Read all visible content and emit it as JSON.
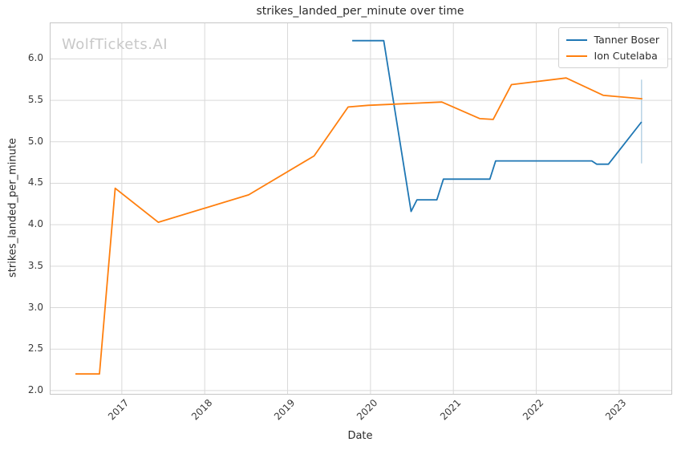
{
  "watermark": {
    "text": "WolfTickets.AI"
  },
  "colors": {
    "grid": "#d9d9d9",
    "spine": "#c6c6c6",
    "text": "#2b2b2b",
    "tick_text": "#3a3a3a",
    "watermark": "#c8c8c8",
    "series_blue": "#1f77b4",
    "series_orange": "#ff7f0e",
    "error_bar": "#aecde1"
  },
  "chart_data": {
    "type": "line",
    "title": "strikes_landed_per_minute over time",
    "xlabel": "Date",
    "ylabel": "strikes_landed_per_minute",
    "grid": true,
    "legend_position": "upper right",
    "xlim": [
      2016.14,
      2023.63
    ],
    "ylim": [
      1.96,
      6.43
    ],
    "x_ticks": [
      2017,
      2018,
      2019,
      2020,
      2021,
      2022,
      2023
    ],
    "x_tick_labels": [
      "2017",
      "2018",
      "2019",
      "2020",
      "2021",
      "2022",
      "2023"
    ],
    "y_ticks": [
      2.0,
      2.5,
      3.0,
      3.5,
      4.0,
      4.5,
      5.0,
      5.5,
      6.0
    ],
    "y_tick_labels": [
      "2.0",
      "2.5",
      "3.0",
      "3.5",
      "4.0",
      "4.5",
      "5.0",
      "5.5",
      "6.0"
    ],
    "series": [
      {
        "name": "Tanner Boser",
        "color": "#1f77b4",
        "x": [
          2019.78,
          2020.16,
          2020.49,
          2020.56,
          2020.8,
          2020.88,
          2021.44,
          2021.51,
          2022.67,
          2022.73,
          2022.87,
          2023.27
        ],
        "y": [
          6.22,
          6.22,
          4.16,
          4.3,
          4.3,
          4.55,
          4.55,
          4.77,
          4.77,
          4.73,
          4.73,
          5.24
        ],
        "error_bar": {
          "x": 2023.27,
          "y_low": 4.74,
          "y_high": 5.75,
          "color": "#aecde1"
        }
      },
      {
        "name": "Ion Cutelaba",
        "color": "#ff7f0e",
        "x": [
          2016.44,
          2016.73,
          2016.92,
          2017.44,
          2018.53,
          2019.32,
          2019.73,
          2019.97,
          2020.86,
          2021.32,
          2021.48,
          2021.7,
          2022.36,
          2022.81,
          2023.28
        ],
        "y": [
          2.2,
          2.2,
          4.44,
          4.03,
          4.36,
          4.83,
          5.42,
          5.44,
          5.48,
          5.28,
          5.27,
          5.69,
          5.77,
          5.56,
          5.52
        ],
        "error_bar": null
      }
    ]
  }
}
